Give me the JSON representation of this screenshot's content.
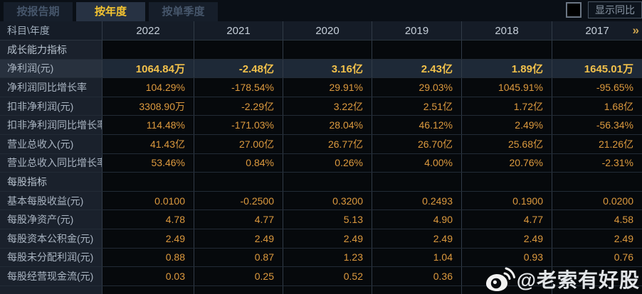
{
  "tab_bar": {
    "tabs": [
      {
        "label": "按报告期",
        "active": false
      },
      {
        "label": "按年度",
        "active": true
      },
      {
        "label": "按单季度",
        "active": false
      }
    ],
    "show_yoy_label": "显示同比",
    "checkbox_checked": false
  },
  "table": {
    "corner_label": "科目\\年度",
    "years": [
      "2022",
      "2021",
      "2020",
      "2019",
      "2018",
      "2017"
    ],
    "more_icon": "»",
    "rows": [
      {
        "type": "section",
        "label": "成长能力指标",
        "values": [
          "",
          "",
          "",
          "",
          "",
          ""
        ]
      },
      {
        "type": "highlight",
        "label": "净利润(元)",
        "values": [
          "1064.84万",
          "-2.48亿",
          "3.16亿",
          "2.43亿",
          "1.89亿",
          "1645.01万"
        ]
      },
      {
        "type": "data",
        "label": "净利润同比增长率",
        "values": [
          "104.29%",
          "-178.54%",
          "29.91%",
          "29.03%",
          "1045.91%",
          "-95.65%"
        ]
      },
      {
        "type": "data",
        "label": "扣非净利润(元)",
        "values": [
          "3308.90万",
          "-2.29亿",
          "3.22亿",
          "2.51亿",
          "1.72亿",
          "1.68亿"
        ]
      },
      {
        "type": "data",
        "label": "扣非净利润同比增长率",
        "values": [
          "114.48%",
          "-171.03%",
          "28.04%",
          "46.12%",
          "2.49%",
          "-56.34%"
        ]
      },
      {
        "type": "data",
        "label": "营业总收入(元)",
        "values": [
          "41.43亿",
          "27.00亿",
          "26.77亿",
          "26.70亿",
          "25.68亿",
          "21.26亿"
        ]
      },
      {
        "type": "data",
        "label": "营业总收入同比增长率",
        "values": [
          "53.46%",
          "0.84%",
          "0.26%",
          "4.00%",
          "20.76%",
          "-2.31%"
        ]
      },
      {
        "type": "section",
        "label": "每股指标",
        "values": [
          "",
          "",
          "",
          "",
          "",
          ""
        ]
      },
      {
        "type": "data",
        "label": "基本每股收益(元)",
        "values": [
          "0.0100",
          "-0.2500",
          "0.3200",
          "0.2493",
          "0.1900",
          "0.0200"
        ]
      },
      {
        "type": "data",
        "label": "每股净资产(元)",
        "values": [
          "4.78",
          "4.77",
          "5.13",
          "4.90",
          "4.77",
          "4.58"
        ]
      },
      {
        "type": "data",
        "label": "每股资本公积金(元)",
        "values": [
          "2.49",
          "2.49",
          "2.49",
          "2.49",
          "2.49",
          "2.49"
        ]
      },
      {
        "type": "data",
        "label": "每股未分配利润(元)",
        "values": [
          "0.88",
          "0.87",
          "1.23",
          "1.04",
          "0.93",
          "0.76"
        ]
      },
      {
        "type": "data",
        "label": "每股经营现金流(元)",
        "values": [
          "0.03",
          "0.25",
          "0.52",
          "0.36",
          "",
          ""
        ]
      },
      {
        "type": "clip",
        "label": "",
        "values": [
          "",
          "",
          "",
          "",
          "",
          ""
        ]
      }
    ]
  },
  "watermark": {
    "icon": "weibo-icon",
    "text": "@老索有好股"
  },
  "colors": {
    "accent_gold": "#f5c431",
    "value_orange": "#dd9a3e",
    "highlight_value": "#f2c14b",
    "label_bg": "#1a212c",
    "highlight_bg": "#1e2937"
  }
}
